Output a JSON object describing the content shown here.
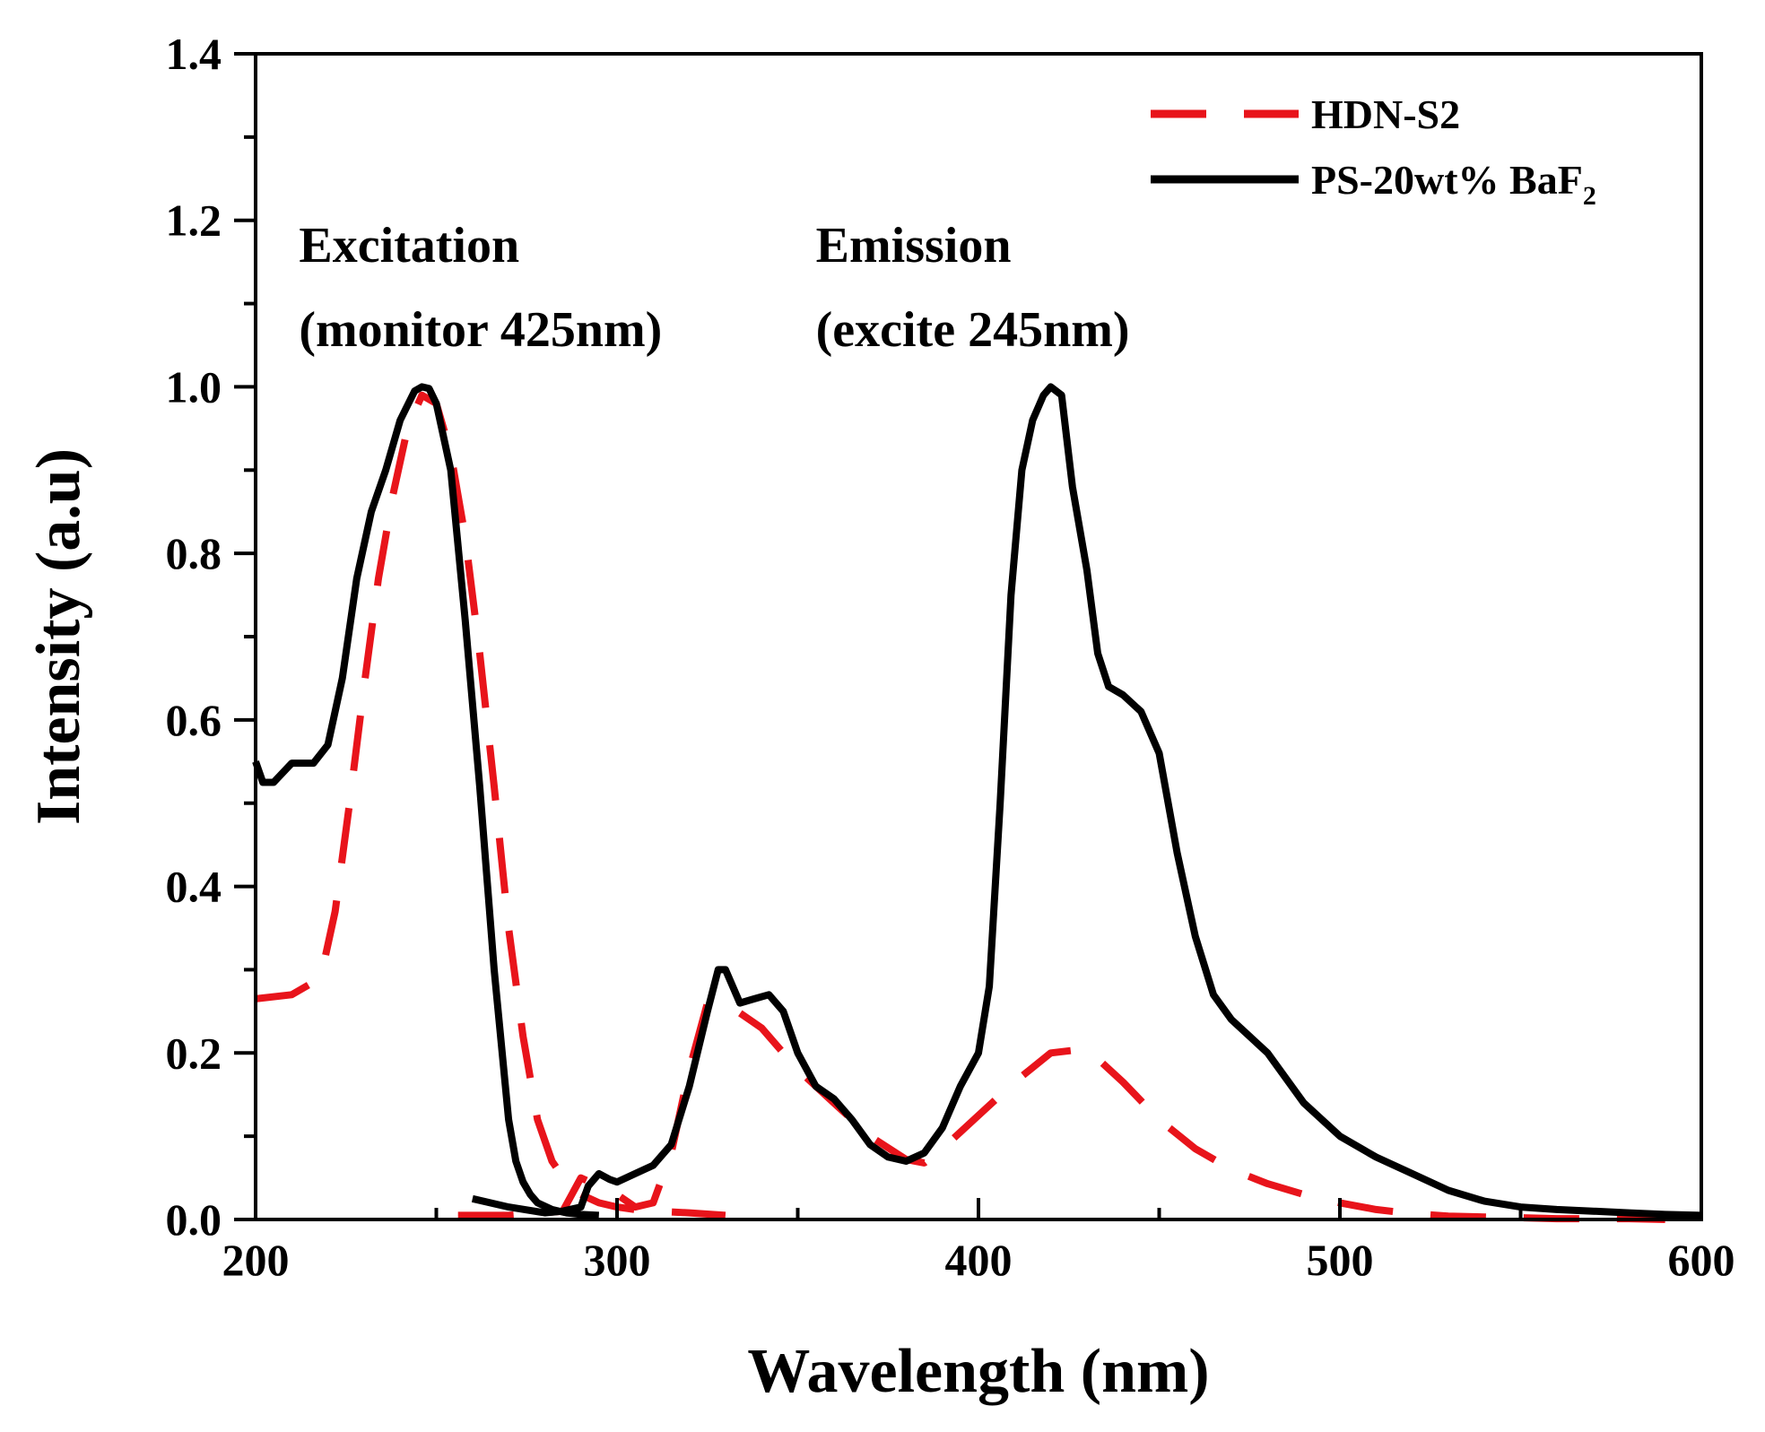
{
  "chart_data": {
    "type": "line",
    "title": "",
    "xlabel": "Wavelength (nm)",
    "ylabel": "Intensity (a.u)",
    "xlim": [
      200,
      600
    ],
    "ylim": [
      0.0,
      1.4
    ],
    "xticks": [
      200,
      300,
      400,
      500,
      600
    ],
    "xtick_labels": [
      "200",
      "300",
      "400",
      "500",
      "600"
    ],
    "yticks": [
      0.0,
      0.2,
      0.4,
      0.6,
      0.8,
      1.0,
      1.2,
      1.4
    ],
    "ytick_labels": [
      "0.0",
      "0.2",
      "0.4",
      "0.6",
      "0.8",
      "1.0",
      "1.2",
      "1.4"
    ],
    "grid": false,
    "legend_position": "top-right",
    "annotations": [
      {
        "lines": [
          "Excitation",
          "(monitor 425nm)"
        ],
        "x": 212,
        "y": 1.15
      },
      {
        "lines": [
          "Emission",
          "(excite 245nm)"
        ],
        "x": 355,
        "y": 1.15
      }
    ],
    "series": [
      {
        "name": "HDN-S2 excitation",
        "legend": "HDN-S2",
        "color": "#e8141b",
        "style": "dashed",
        "x": [
          200,
          210,
          218,
          222,
          226,
          230,
          234,
          238,
          242,
          246,
          250,
          254,
          258,
          262,
          266,
          270,
          274,
          278,
          282,
          286,
          290,
          295,
          300,
          305,
          310,
          320,
          330
        ],
        "y": [
          0.265,
          0.27,
          0.29,
          0.37,
          0.5,
          0.64,
          0.77,
          0.87,
          0.95,
          0.99,
          0.98,
          0.92,
          0.82,
          0.68,
          0.52,
          0.35,
          0.22,
          0.12,
          0.07,
          0.045,
          0.03,
          0.02,
          0.015,
          0.012,
          0.01,
          0.008,
          0.005
        ]
      },
      {
        "name": "HDN-S2 emission",
        "legend": "",
        "color": "#e8141b",
        "style": "dashed",
        "x": [
          256,
          270,
          285,
          290,
          300,
          305,
          310,
          315,
          320,
          325,
          330,
          340,
          350,
          360,
          370,
          380,
          385,
          390,
          400,
          410,
          420,
          430,
          440,
          450,
          460,
          470,
          480,
          490,
          500,
          510,
          520,
          530,
          540,
          550,
          560,
          570,
          580,
          590
        ],
        "y": [
          0.005,
          0.005,
          0.01,
          0.05,
          0.03,
          0.015,
          0.02,
          0.08,
          0.18,
          0.26,
          0.26,
          0.23,
          0.18,
          0.14,
          0.1,
          0.072,
          0.068,
          0.085,
          0.125,
          0.165,
          0.2,
          0.205,
          0.165,
          0.12,
          0.085,
          0.06,
          0.043,
          0.03,
          0.02,
          0.012,
          0.007,
          0.004,
          0.003,
          0.002,
          0.001,
          0.001,
          0.001,
          0.0
        ]
      },
      {
        "name": "PS-20wt% BaF2 excitation",
        "legend": "PS-20wt% BaF2",
        "color": "#000000",
        "style": "solid",
        "x": [
          200,
          202,
          205,
          210,
          216,
          220,
          224,
          228,
          232,
          236,
          240,
          244,
          246,
          248,
          250,
          254,
          258,
          262,
          266,
          270,
          272,
          274,
          276,
          278,
          282,
          286,
          290,
          295
        ],
        "y": [
          0.55,
          0.525,
          0.525,
          0.548,
          0.548,
          0.57,
          0.65,
          0.77,
          0.85,
          0.9,
          0.96,
          0.995,
          1.0,
          0.998,
          0.98,
          0.9,
          0.72,
          0.52,
          0.3,
          0.12,
          0.07,
          0.045,
          0.03,
          0.02,
          0.012,
          0.008,
          0.006,
          0.005
        ]
      },
      {
        "name": "PS-20wt% BaF2 emission",
        "legend": "",
        "color": "#000000",
        "style": "solid",
        "x": [
          260,
          270,
          280,
          285,
          290,
          292,
          295,
          298,
          300,
          305,
          310,
          315,
          320,
          325,
          328,
          330,
          334,
          338,
          342,
          346,
          350,
          355,
          360,
          365,
          370,
          375,
          380,
          385,
          390,
          395,
          400,
          403,
          406,
          409,
          412,
          415,
          418,
          420,
          423,
          426,
          430,
          433,
          436,
          440,
          445,
          450,
          455,
          460,
          465,
          470,
          480,
          490,
          500,
          510,
          520,
          530,
          540,
          550,
          560,
          570,
          580,
          590,
          600
        ],
        "y": [
          0.025,
          0.015,
          0.008,
          0.01,
          0.015,
          0.04,
          0.055,
          0.048,
          0.045,
          0.055,
          0.065,
          0.09,
          0.16,
          0.25,
          0.3,
          0.3,
          0.26,
          0.265,
          0.27,
          0.25,
          0.2,
          0.16,
          0.145,
          0.12,
          0.09,
          0.075,
          0.07,
          0.08,
          0.11,
          0.16,
          0.2,
          0.28,
          0.5,
          0.75,
          0.9,
          0.96,
          0.99,
          1.0,
          0.99,
          0.88,
          0.78,
          0.68,
          0.64,
          0.63,
          0.61,
          0.56,
          0.44,
          0.34,
          0.27,
          0.24,
          0.2,
          0.14,
          0.1,
          0.075,
          0.055,
          0.035,
          0.022,
          0.015,
          0.012,
          0.01,
          0.008,
          0.006,
          0.005
        ]
      }
    ]
  }
}
